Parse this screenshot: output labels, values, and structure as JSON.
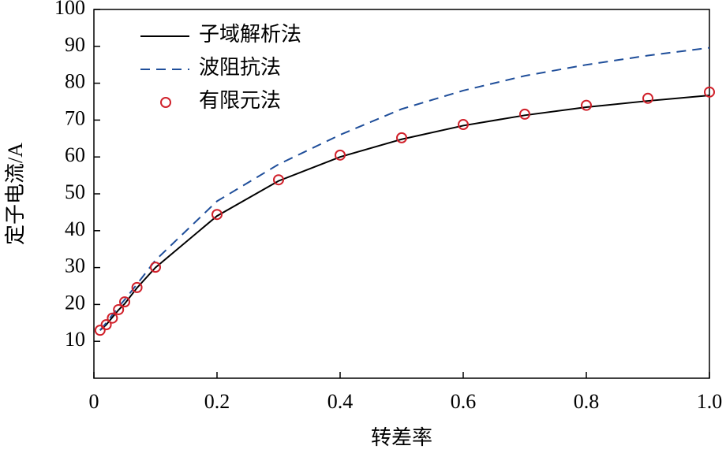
{
  "chart_data": {
    "type": "line",
    "x_label": "转差率",
    "y_label": "定子电流/A",
    "x": [
      0.01,
      0.02,
      0.03,
      0.04,
      0.05,
      0.07,
      0.1,
      0.2,
      0.3,
      0.4,
      0.5,
      0.6,
      0.7,
      0.8,
      0.9,
      1.0
    ],
    "series": [
      {
        "name": "子域解析法",
        "color": "#000000",
        "style": "solid",
        "values": [
          13,
          14.5,
          16.5,
          18.5,
          20.2,
          24.5,
          30,
          44,
          53.5,
          60,
          64.8,
          68.5,
          71.3,
          73.5,
          75.2,
          76.7
        ]
      },
      {
        "name": "波阻抗法",
        "color": "#1f4e9a",
        "style": "dashed",
        "values": [
          13,
          15,
          17.2,
          19.3,
          21.3,
          25.5,
          32,
          48,
          58,
          66,
          73,
          78,
          82,
          85,
          87.5,
          89.6
        ]
      },
      {
        "name": "有限元法",
        "color": "#d0202a",
        "style": "markers",
        "values": [
          13,
          14.5,
          16.3,
          18.6,
          20.7,
          24.6,
          30.1,
          44.4,
          53.8,
          60.5,
          65.2,
          68.8,
          71.6,
          74,
          75.9,
          77.6
        ]
      }
    ],
    "xlim": [
      0,
      1
    ],
    "ylim": [
      0,
      100
    ],
    "xticks": [
      0,
      0.2,
      0.4,
      0.6,
      0.8,
      {
        "value": 1,
        "label": "1.0"
      }
    ],
    "yticks": [
      10,
      20,
      30,
      40,
      50,
      60,
      70,
      80,
      90,
      100
    ],
    "legend": "upper-left"
  }
}
